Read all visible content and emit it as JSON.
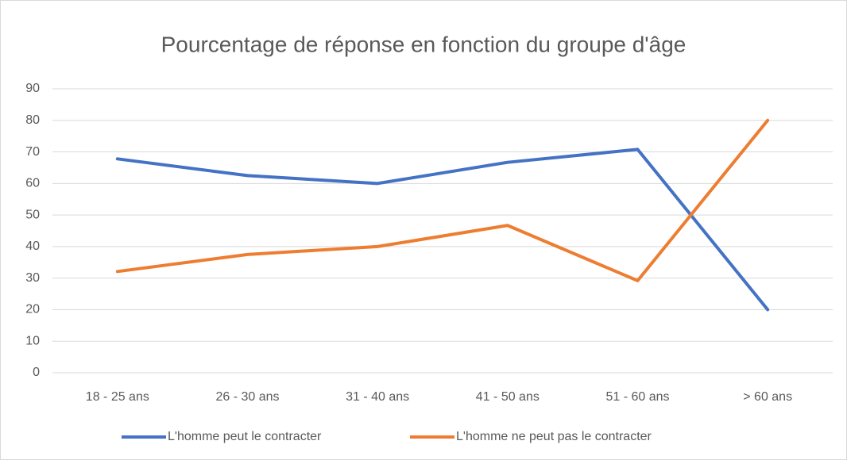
{
  "chart_data": {
    "type": "line",
    "title": "Pourcentage de réponse en fonction du groupe d'âge",
    "categories": [
      "18 - 25 ans",
      "26 - 30 ans",
      "31 - 40 ans",
      "41 - 50 ans",
      "51 - 60 ans",
      "> 60 ans"
    ],
    "series": [
      {
        "name": "L'homme peut le contracter",
        "color": "#4472c4",
        "values": [
          67.8,
          62.5,
          60,
          66.7,
          70.8,
          20
        ]
      },
      {
        "name": "L'homme ne peut pas le contracter",
        "color": "#ed7d31",
        "values": [
          32.1,
          37.5,
          40,
          46.7,
          29.2,
          80
        ]
      }
    ],
    "ylim": [
      0,
      90
    ],
    "yticks": [
      0,
      10,
      20,
      30,
      40,
      50,
      60,
      70,
      80,
      90
    ],
    "grid": true,
    "legend": "bottom"
  }
}
